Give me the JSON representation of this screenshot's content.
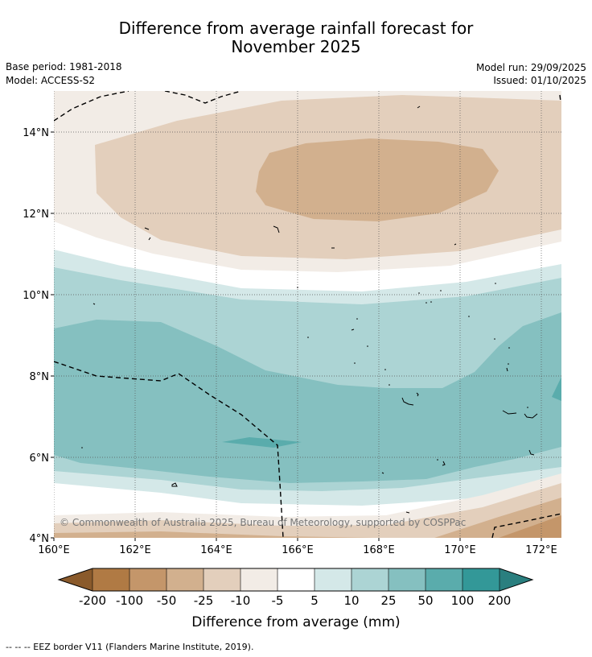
{
  "header": {
    "title_line1": "Difference from average rainfall forecast for",
    "title_line2": "November 2025",
    "base_period": "Base period: 1981-2018",
    "model": "Model: ACCESS-S2",
    "model_run": "Model run: 29/09/2025",
    "issued": "Issued: 01/10/2025"
  },
  "map": {
    "y_ticks": [
      "14°N",
      "12°N",
      "10°N",
      "8°N",
      "6°N",
      "4°N"
    ],
    "x_ticks": [
      "160°E",
      "162°E",
      "164°E",
      "166°E",
      "168°E",
      "170°E",
      "172°E"
    ],
    "copyright": "© Commonwealth of Australia 2025, Bureau of Meteorology, supported by COSPPac",
    "extent": {
      "lon_min": 160,
      "lon_max": 172.5,
      "lat_min": 4,
      "lat_max": 15
    }
  },
  "colorbar": {
    "label": "Difference from average (mm)",
    "ticks": [
      "-200",
      "-100",
      "-50",
      "-25",
      "-10",
      "-5",
      "5",
      "10",
      "25",
      "50",
      "100",
      "200"
    ],
    "colors": {
      "below_min": "#8a5a2b",
      "c1": "#b07a44",
      "c2": "#c4966a",
      "c3": "#d2b08e",
      "c4": "#e3cfbc",
      "c5": "#f2ece6",
      "c6": "#ffffff",
      "c7": "#d4e8e8",
      "c8": "#acd4d4",
      "c9": "#85c0c0",
      "c10": "#5aacac",
      "c11": "#339898",
      "above_max": "#2a7f7f"
    }
  },
  "footer": {
    "legend_note": "--  --  -- EEZ border V11 (Flanders Marine Institute, 2019)."
  }
}
